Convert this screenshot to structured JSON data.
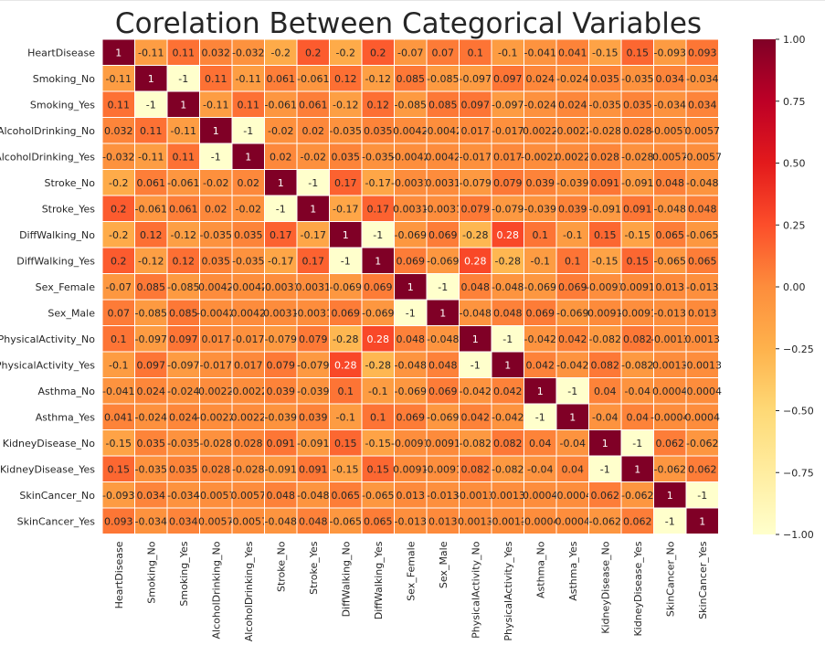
{
  "chart_data": {
    "type": "heatmap",
    "title": "Corelation Between Categorical Variables",
    "categories": [
      "HeartDisease",
      "Smoking_No",
      "Smoking_Yes",
      "AlcoholDrinking_No",
      "AlcoholDrinking_Yes",
      "Stroke_No",
      "Stroke_Yes",
      "DiffWalking_No",
      "DiffWalking_Yes",
      "Sex_Female",
      "Sex_Male",
      "PhysicalActivity_No",
      "PhysicalActivity_Yes",
      "Asthma_No",
      "Asthma_Yes",
      "KidneyDisease_No",
      "KidneyDisease_Yes",
      "SkinCancer_No",
      "SkinCancer_Yes"
    ],
    "matrix": [
      [
        "1",
        "-0.11",
        "0.11",
        "0.032",
        "-0.032",
        "-0.2",
        "0.2",
        "-0.2",
        "0.2",
        "-0.07",
        "0.07",
        "0.1",
        "-0.1",
        "-0.041",
        "0.041",
        "-0.15",
        "0.15",
        "-0.093",
        "0.093"
      ],
      [
        "-0.11",
        "1",
        "-1",
        "0.11",
        "-0.11",
        "0.061",
        "-0.061",
        "0.12",
        "-0.12",
        "0.085",
        "-0.085",
        "-0.097",
        "0.097",
        "0.024",
        "-0.024",
        "0.035",
        "-0.035",
        "0.034",
        "-0.034"
      ],
      [
        "0.11",
        "-1",
        "1",
        "-0.11",
        "0.11",
        "-0.061",
        "0.061",
        "-0.12",
        "0.12",
        "-0.085",
        "0.085",
        "0.097",
        "-0.097",
        "-0.024",
        "0.024",
        "-0.035",
        "0.035",
        "-0.034",
        "0.034"
      ],
      [
        "0.032",
        "0.11",
        "-0.11",
        "1",
        "-1",
        "-0.02",
        "0.02",
        "-0.035",
        "0.035",
        "0.0042",
        "-0.0042",
        "0.017",
        "-0.017",
        "0.0022",
        "-0.0022",
        "-0.028",
        "0.028",
        "-0.0057",
        "0.0057"
      ],
      [
        "-0.032",
        "-0.11",
        "0.11",
        "-1",
        "1",
        "0.02",
        "-0.02",
        "0.035",
        "-0.035",
        "-0.0042",
        "0.0042",
        "-0.017",
        "0.017",
        "-0.0022",
        "0.0022",
        "0.028",
        "-0.028",
        "0.0057",
        "-0.0057"
      ],
      [
        "-0.2",
        "0.061",
        "-0.061",
        "-0.02",
        "0.02",
        "1",
        "-1",
        "0.17",
        "-0.17",
        "-0.0031",
        "0.0031",
        "-0.079",
        "0.079",
        "0.039",
        "-0.039",
        "0.091",
        "-0.091",
        "0.048",
        "-0.048"
      ],
      [
        "0.2",
        "-0.061",
        "0.061",
        "0.02",
        "-0.02",
        "-1",
        "1",
        "-0.17",
        "0.17",
        "0.0031",
        "-0.0031",
        "0.079",
        "-0.079",
        "-0.039",
        "0.039",
        "-0.091",
        "0.091",
        "-0.048",
        "0.048"
      ],
      [
        "-0.2",
        "0.12",
        "-0.12",
        "-0.035",
        "0.035",
        "0.17",
        "-0.17",
        "1",
        "-1",
        "-0.069",
        "0.069",
        "-0.28",
        "0.28",
        "0.1",
        "-0.1",
        "0.15",
        "-0.15",
        "0.065",
        "-0.065"
      ],
      [
        "0.2",
        "-0.12",
        "0.12",
        "0.035",
        "-0.035",
        "-0.17",
        "0.17",
        "-1",
        "1",
        "0.069",
        "-0.069",
        "0.28",
        "-0.28",
        "-0.1",
        "0.1",
        "-0.15",
        "0.15",
        "-0.065",
        "0.065"
      ],
      [
        "-0.07",
        "0.085",
        "-0.085",
        "0.0042",
        "-0.0042",
        "-0.0031",
        "0.0031",
        "-0.069",
        "0.069",
        "1",
        "-1",
        "0.048",
        "-0.048",
        "-0.069",
        "0.069",
        "-0.0091",
        "0.0091",
        "0.013",
        "-0.013"
      ],
      [
        "0.07",
        "-0.085",
        "0.085",
        "-0.0042",
        "0.0042",
        "0.0031",
        "-0.0031",
        "0.069",
        "-0.069",
        "-1",
        "1",
        "-0.048",
        "0.048",
        "0.069",
        "-0.069",
        "0.0091",
        "-0.0091",
        "-0.013",
        "0.013"
      ],
      [
        "0.1",
        "-0.097",
        "0.097",
        "0.017",
        "-0.017",
        "-0.079",
        "0.079",
        "-0.28",
        "0.28",
        "0.048",
        "-0.048",
        "1",
        "-1",
        "-0.042",
        "0.042",
        "-0.082",
        "0.082",
        "-0.0013",
        "0.0013"
      ],
      [
        "-0.1",
        "0.097",
        "-0.097",
        "-0.017",
        "0.017",
        "0.079",
        "-0.079",
        "0.28",
        "-0.28",
        "-0.048",
        "0.048",
        "-1",
        "1",
        "0.042",
        "-0.042",
        "0.082",
        "-0.082",
        "0.0013",
        "-0.0013"
      ],
      [
        "-0.041",
        "0.024",
        "-0.024",
        "0.0022",
        "-0.0022",
        "0.039",
        "-0.039",
        "0.1",
        "-0.1",
        "-0.069",
        "0.069",
        "-0.042",
        "0.042",
        "1",
        "-1",
        "0.04",
        "-0.04",
        "0.0004",
        "-0.0004"
      ],
      [
        "0.041",
        "-0.024",
        "0.024",
        "-0.0022",
        "0.0022",
        "-0.039",
        "0.039",
        "-0.1",
        "0.1",
        "0.069",
        "-0.069",
        "0.042",
        "-0.042",
        "-1",
        "1",
        "-0.04",
        "0.04",
        "-0.0004",
        "0.0004"
      ],
      [
        "-0.15",
        "0.035",
        "-0.035",
        "-0.028",
        "0.028",
        "0.091",
        "-0.091",
        "0.15",
        "-0.15",
        "-0.0091",
        "0.0091",
        "-0.082",
        "0.082",
        "0.04",
        "-0.04",
        "1",
        "-1",
        "0.062",
        "-0.062"
      ],
      [
        "0.15",
        "-0.035",
        "0.035",
        "0.028",
        "-0.028",
        "-0.091",
        "0.091",
        "-0.15",
        "0.15",
        "0.0091",
        "-0.0091",
        "0.082",
        "-0.082",
        "-0.04",
        "0.04",
        "-1",
        "1",
        "-0.062",
        "0.062"
      ],
      [
        "-0.093",
        "0.034",
        "-0.034",
        "-0.0057",
        "0.0057",
        "0.048",
        "-0.048",
        "0.065",
        "-0.065",
        "0.013",
        "-0.013",
        "-0.0013",
        "0.0013",
        "0.0004",
        "-0.0004",
        "0.062",
        "-0.062",
        "1",
        "-1"
      ],
      [
        "0.093",
        "-0.034",
        "0.034",
        "0.0057",
        "-0.0057",
        "-0.048",
        "0.048",
        "-0.065",
        "0.065",
        "-0.013",
        "0.013",
        "0.0013",
        "-0.0013",
        "-0.0004",
        "0.0004",
        "-0.062",
        "0.062",
        "-1",
        "1"
      ]
    ],
    "colorbar": {
      "range": [
        -1,
        1
      ],
      "tick_values": [
        1,
        0.75,
        0.5,
        0.25,
        0,
        -0.25,
        -0.5,
        -0.75,
        -1
      ],
      "tick_labels": [
        "1.00",
        "0.75",
        "0.50",
        "0.25",
        "0.00",
        "−0.25",
        "−0.50",
        "−0.75",
        "−1.00"
      ],
      "colormap": "YlOrRd",
      "colormap_stops": [
        "#ffffcc",
        "#ffeda0",
        "#fed976",
        "#feb24c",
        "#fd8d3c",
        "#fc4e2a",
        "#e31a1c",
        "#bd0026",
        "#800026"
      ]
    },
    "grid": true,
    "cell_border_color": "#ffffff",
    "legend_position": "right"
  }
}
